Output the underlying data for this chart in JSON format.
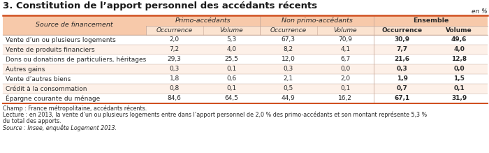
{
  "title": "3. Constitution de l’apport personnel des accédants récents",
  "en_pct_label": "en %",
  "col_groups": [
    "Primo-accédants",
    "Non primo-accédants",
    "Ensemble"
  ],
  "col_subheaders": [
    "Occurrence",
    "Volume",
    "Occurrence",
    "Volume",
    "Occurrence",
    "Volume"
  ],
  "row_header": "Source de financement",
  "rows": [
    "Vente d’un ou plusieurs logements",
    "Vente de produits financiers",
    "Dons ou donations de particuliers, héritages",
    "Autres gains",
    "Vente d’autres biens",
    "Crédit à la consommation",
    "Épargne courante du ménage"
  ],
  "data": [
    [
      "2,0",
      "5,3",
      "67,3",
      "70,9",
      "30,9",
      "49,6"
    ],
    [
      "7,2",
      "4,0",
      "8,2",
      "4,1",
      "7,7",
      "4,0"
    ],
    [
      "29,3",
      "25,5",
      "12,0",
      "6,7",
      "21,6",
      "12,8"
    ],
    [
      "0,3",
      "0,1",
      "0,3",
      "0,0",
      "0,3",
      "0,0"
    ],
    [
      "1,8",
      "0,6",
      "2,1",
      "2,0",
      "1,9",
      "1,5"
    ],
    [
      "0,8",
      "0,1",
      "0,5",
      "0,1",
      "0,7",
      "0,1"
    ],
    [
      "84,6",
      "64,5",
      "44,9",
      "16,2",
      "67,1",
      "31,9"
    ]
  ],
  "footer_lines": [
    [
      "Champ : France métropolitaine, accédants récents.",
      false
    ],
    [
      "Lecture : en 2013, la vente d’un ou plusieurs logements entre dans l’apport personnel de 2,0 % des primo-accédants et son montant représente 5,3 %",
      false
    ],
    [
      "du total des apports.",
      false
    ],
    [
      "Source : Insee, enquête Logement 2013.",
      true
    ]
  ],
  "header_bg": "#F7C9AA",
  "subheader_bg": "#FBE3D0",
  "row_bg_light": "#FFFFFF",
  "row_bg_warm": "#FDF0E8",
  "border_color": "#D05020",
  "grid_color": "#C8A898",
  "text_color": "#2A2A2A",
  "title_color": "#1A1A1A",
  "title_fontsize": 9.5,
  "group_fontsize": 6.8,
  "sub_fontsize": 6.5,
  "row_fontsize": 6.5,
  "footer_fontsize": 5.8
}
